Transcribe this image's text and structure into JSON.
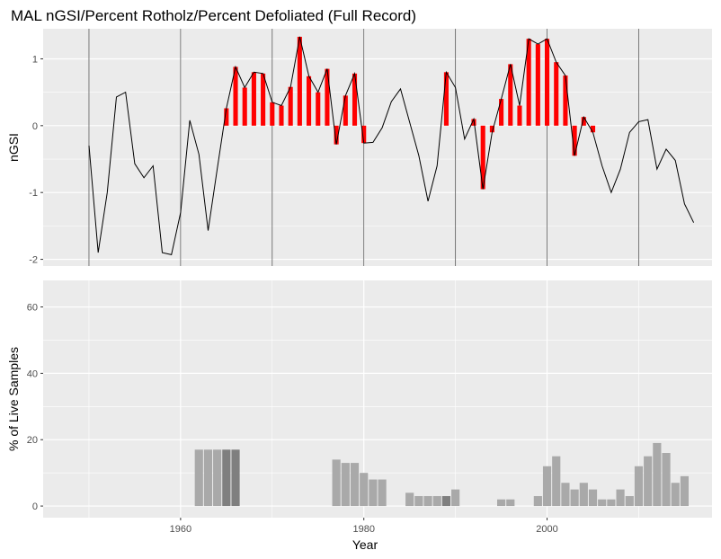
{
  "chart_data": {
    "title": "MAL nGSI/Percent Rotholz/Percent Defoliated (Full Record)",
    "xlabel": "Year",
    "x_ticks": [
      1960,
      1980,
      2000
    ],
    "colors": {
      "panel_bg": "#ebebeb",
      "grid": "#ffffff",
      "line": "#000000",
      "highlight": "#ff0000",
      "vline": "#5a5a5a",
      "bar_light": "#a9a9a9",
      "bar_dark": "#7f7f7f"
    },
    "panels": [
      {
        "type": "line",
        "ylabel": "nGSI",
        "ylim": [
          -2.1,
          1.45
        ],
        "xlim": [
          1945,
          2018
        ],
        "y_ticks": [
          -2,
          -1,
          0,
          1
        ],
        "vlines": [
          1950,
          1960,
          1970,
          1980,
          1990,
          2000,
          2010
        ],
        "series": [
          {
            "x": [
              1950,
              1951,
              1952,
              1953,
              1954,
              1955,
              1956,
              1957,
              1958,
              1959,
              1960,
              1961,
              1962,
              1963,
              1964,
              1965,
              1966,
              1967,
              1968,
              1969,
              1970,
              1971,
              1972,
              1973,
              1974,
              1975,
              1976,
              1977,
              1978,
              1979,
              1980,
              1981,
              1982,
              1983,
              1984,
              1985,
              1986,
              1987,
              1988,
              1989,
              1990,
              1991,
              1992,
              1993,
              1994,
              1995,
              1996,
              1997,
              1998,
              1999,
              2000,
              2001,
              2002,
              2003,
              2004,
              2005,
              2006,
              2007,
              2008,
              2009,
              2010,
              2011,
              2012,
              2013,
              2014,
              2015,
              2016
            ],
            "y": [
              -0.3,
              -1.9,
              -1.0,
              0.43,
              0.5,
              -0.57,
              -0.78,
              -0.6,
              -1.9,
              -1.93,
              -1.3,
              0.08,
              -0.43,
              -1.57,
              -0.65,
              0.26,
              0.88,
              0.57,
              0.8,
              0.78,
              0.35,
              0.3,
              0.58,
              1.33,
              0.74,
              0.5,
              0.85,
              -0.28,
              0.45,
              0.78,
              -0.26,
              -0.25,
              -0.03,
              0.36,
              0.55,
              0.05,
              -0.45,
              -1.13,
              -0.6,
              0.8,
              0.57,
              -0.2,
              0.1,
              -0.95,
              -0.1,
              0.4,
              0.92,
              0.3,
              1.3,
              1.22,
              1.3,
              0.95,
              0.75,
              -0.45,
              0.13,
              -0.1,
              -0.6,
              -1.0,
              -0.65,
              -0.1,
              0.06,
              0.09,
              -0.65,
              -0.35,
              -0.52,
              -1.17,
              -1.45
            ]
          }
        ],
        "highlight_years": [
          1965,
          1966,
          1967,
          1968,
          1969,
          1970,
          1971,
          1972,
          1973,
          1974,
          1975,
          1976,
          1977,
          1978,
          1979,
          1980,
          1989,
          1992,
          1993,
          1994,
          1995,
          1996,
          1997,
          1998,
          1999,
          2000,
          2001,
          2002,
          2003,
          2004,
          2005
        ]
      },
      {
        "type": "bar",
        "ylabel": "% of Live Samples",
        "ylim": [
          -3.5,
          68
        ],
        "xlim": [
          1945,
          2018
        ],
        "y_ticks": [
          0,
          20,
          40,
          60
        ],
        "bars": [
          {
            "x": 1962,
            "value": 17,
            "shade": "light"
          },
          {
            "x": 1963,
            "value": 17,
            "shade": "light"
          },
          {
            "x": 1964,
            "value": 17,
            "shade": "light"
          },
          {
            "x": 1965,
            "value": 17,
            "shade": "dark"
          },
          {
            "x": 1966,
            "value": 17,
            "shade": "dark"
          },
          {
            "x": 1977,
            "value": 14,
            "shade": "light"
          },
          {
            "x": 1978,
            "value": 13,
            "shade": "light"
          },
          {
            "x": 1979,
            "value": 13,
            "shade": "light"
          },
          {
            "x": 1980,
            "value": 10,
            "shade": "light"
          },
          {
            "x": 1981,
            "value": 8,
            "shade": "light"
          },
          {
            "x": 1982,
            "value": 8,
            "shade": "light"
          },
          {
            "x": 1985,
            "value": 4,
            "shade": "light"
          },
          {
            "x": 1986,
            "value": 3,
            "shade": "light"
          },
          {
            "x": 1987,
            "value": 3,
            "shade": "light"
          },
          {
            "x": 1988,
            "value": 3,
            "shade": "light"
          },
          {
            "x": 1989,
            "value": 3,
            "shade": "dark"
          },
          {
            "x": 1990,
            "value": 5,
            "shade": "light"
          },
          {
            "x": 1995,
            "value": 2,
            "shade": "light"
          },
          {
            "x": 1996,
            "value": 2,
            "shade": "light"
          },
          {
            "x": 1999,
            "value": 3,
            "shade": "light"
          },
          {
            "x": 2000,
            "value": 12,
            "shade": "light"
          },
          {
            "x": 2001,
            "value": 15,
            "shade": "light"
          },
          {
            "x": 2002,
            "value": 7,
            "shade": "light"
          },
          {
            "x": 2003,
            "value": 5,
            "shade": "light"
          },
          {
            "x": 2004,
            "value": 7,
            "shade": "light"
          },
          {
            "x": 2005,
            "value": 5,
            "shade": "light"
          },
          {
            "x": 2006,
            "value": 2,
            "shade": "light"
          },
          {
            "x": 2007,
            "value": 2,
            "shade": "light"
          },
          {
            "x": 2008,
            "value": 5,
            "shade": "light"
          },
          {
            "x": 2009,
            "value": 3,
            "shade": "light"
          },
          {
            "x": 2010,
            "value": 12,
            "shade": "light"
          },
          {
            "x": 2011,
            "value": 15,
            "shade": "light"
          },
          {
            "x": 2012,
            "value": 19,
            "shade": "light"
          },
          {
            "x": 2013,
            "value": 16,
            "shade": "light"
          },
          {
            "x": 2014,
            "value": 7,
            "shade": "light"
          },
          {
            "x": 2015,
            "value": 9,
            "shade": "light"
          }
        ]
      }
    ]
  }
}
